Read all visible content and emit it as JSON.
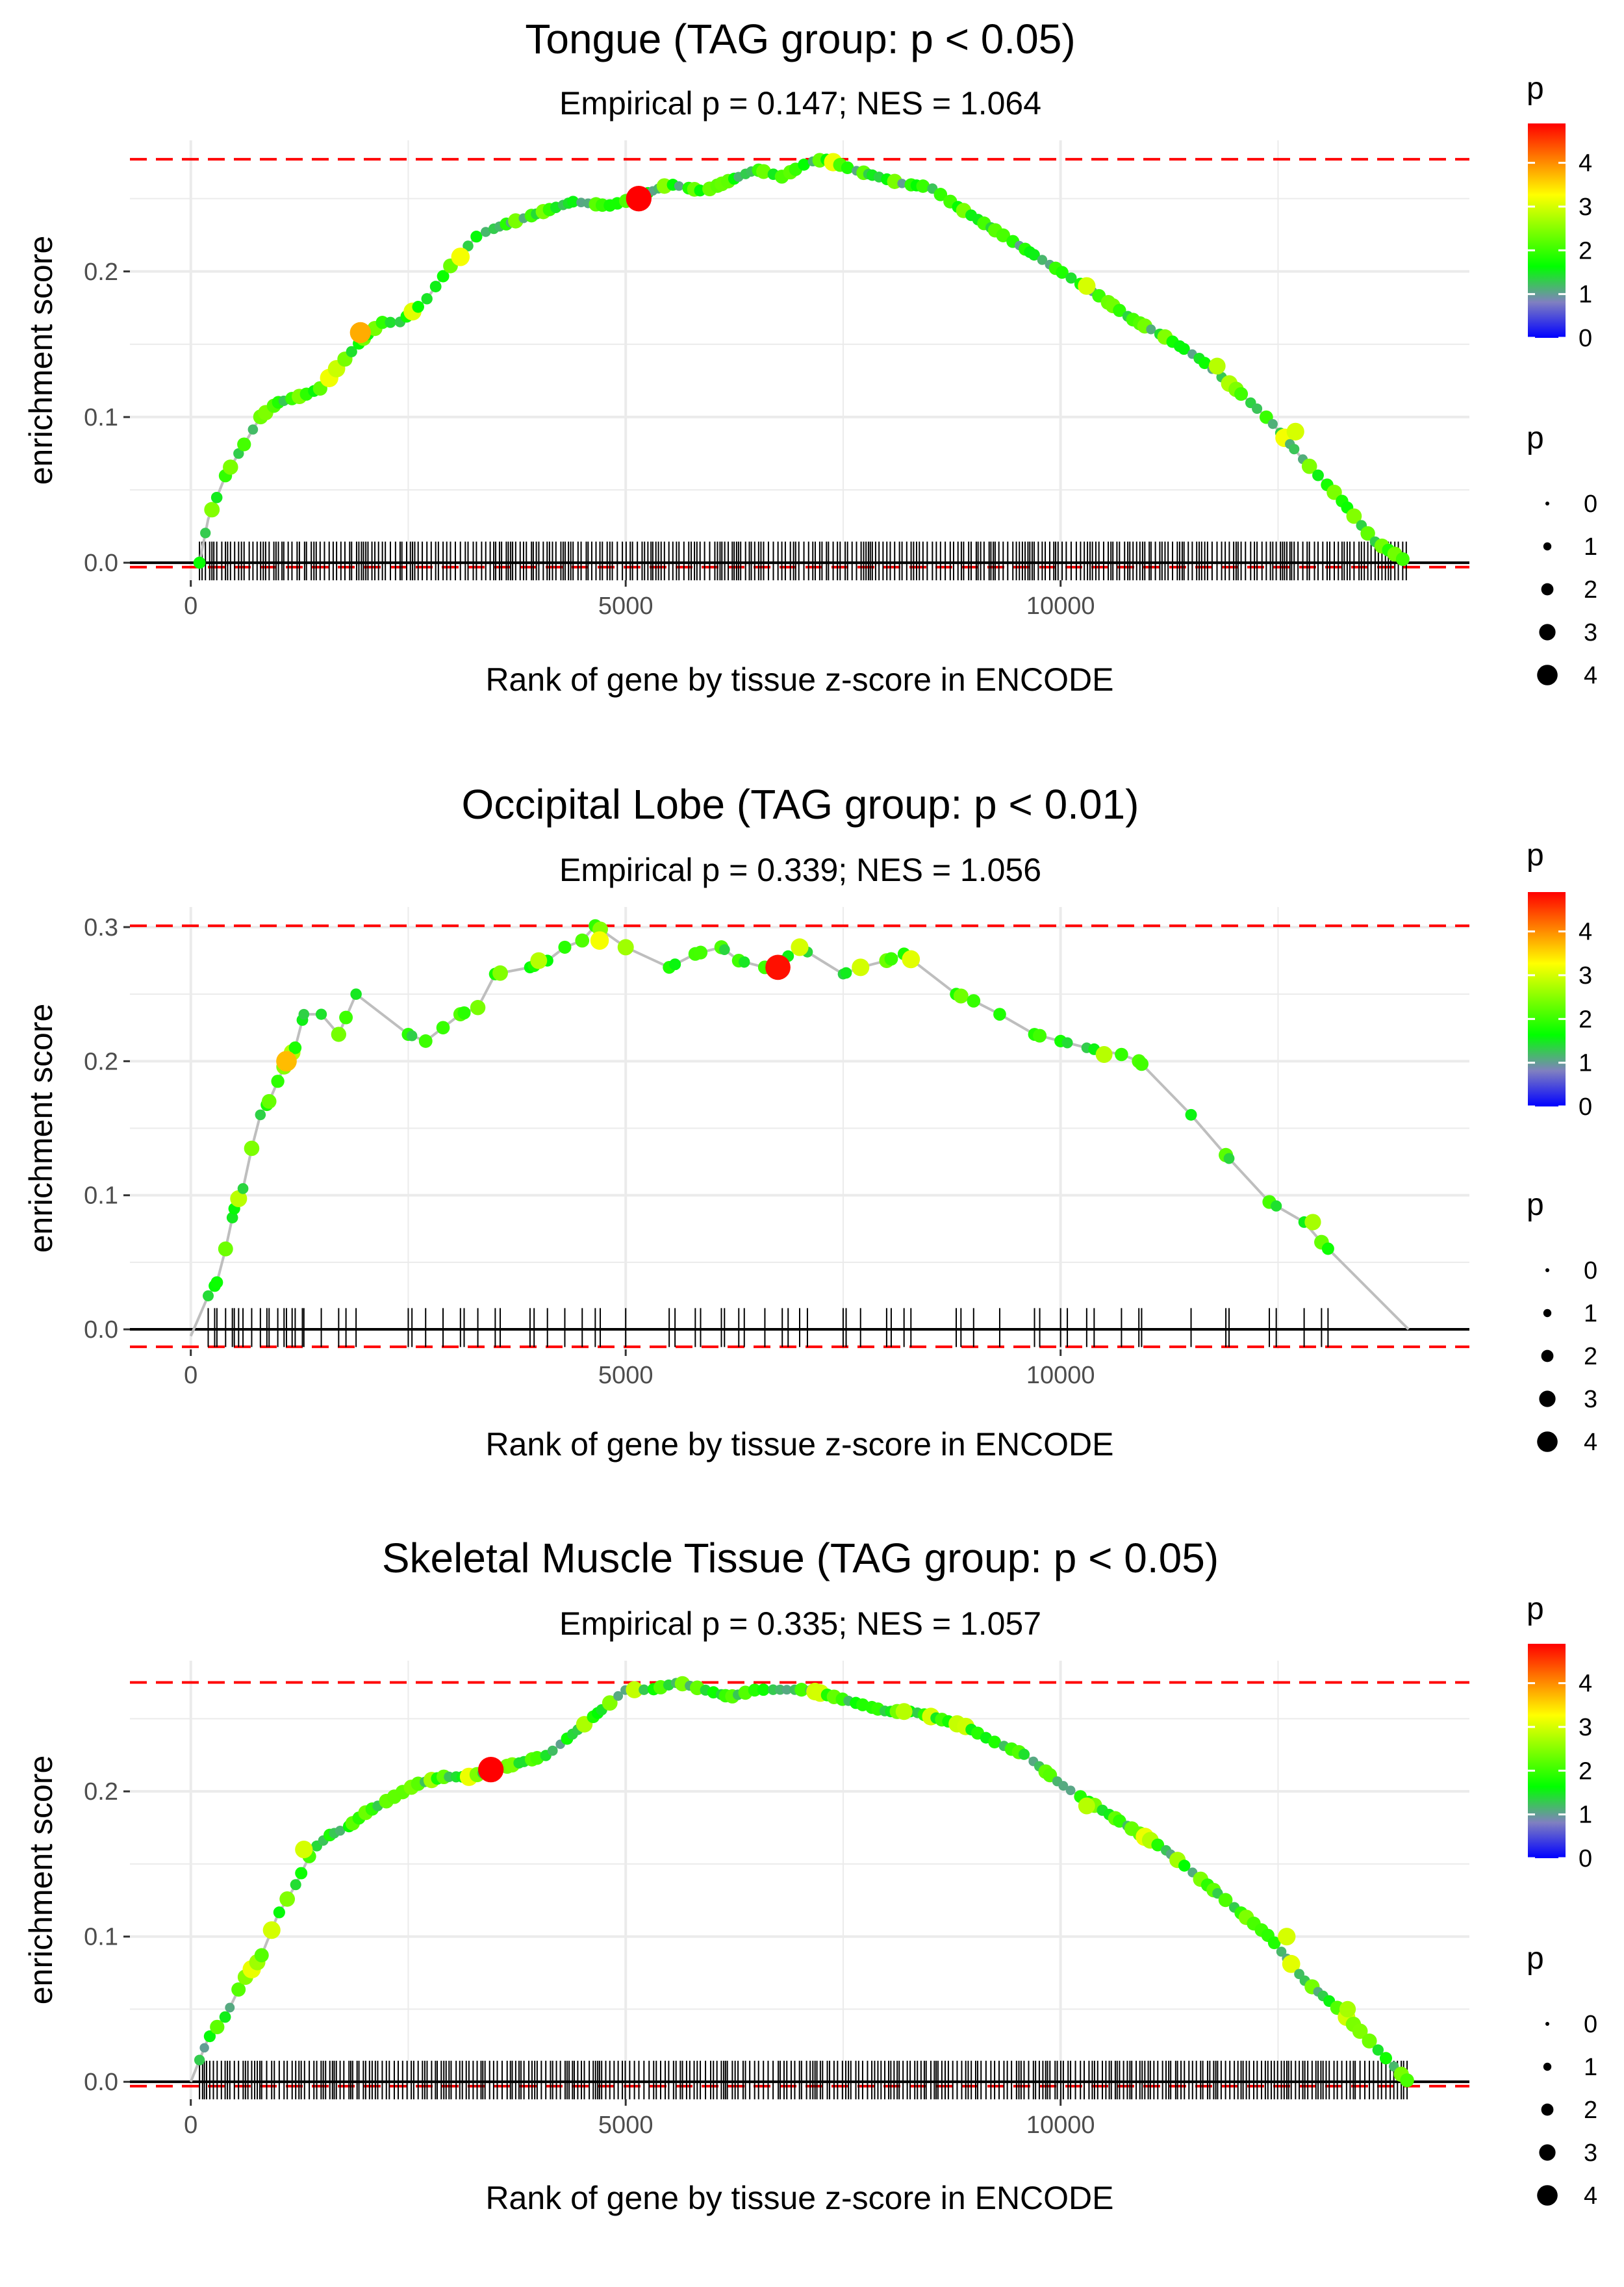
{
  "colors": {
    "gradient": [
      "#0000ff",
      "#8080c0",
      "#00ff00",
      "#7fff00",
      "#ffff00",
      "#ff8000",
      "#ff0000"
    ],
    "threshold_line": "#ff0000",
    "es_line": "#bebebe",
    "grid": "#ebebeb"
  },
  "chart_data": [
    {
      "type": "line",
      "title": "Tongue (TAG group: p < 0.05)",
      "subtitle": "Empirical p = 0.147; NES = 1.064",
      "xlabel": "Rank of gene by tissue z-score in ENCODE",
      "ylabel": "enrichment score",
      "xlim": [
        -700,
        14700
      ],
      "ylim": [
        -0.012,
        0.29
      ],
      "x_ticks": [
        0,
        5000,
        10000
      ],
      "x_tick_labels": [
        "0",
        "5000",
        "10000"
      ],
      "y_ticks": [
        0.0,
        0.1,
        0.2
      ],
      "y_tick_labels": [
        "0.0",
        "0.1",
        "0.2"
      ],
      "grid": true,
      "max_es": 0.277,
      "min_es": -0.003,
      "n_genes": 14000,
      "hit_density": "dense",
      "es_curve": {
        "x": [
          100,
          200,
          400,
          600,
          800,
          1000,
          1300,
          1500,
          1700,
          2000,
          2200,
          2400,
          2700,
          3000,
          3300,
          3600,
          4000,
          4400,
          4800,
          5100,
          5500,
          5900,
          6300,
          6500,
          6800,
          7100,
          7300,
          7600,
          7900,
          8200,
          8500,
          8800,
          9200,
          9600,
          10000,
          10400,
          10800,
          11200,
          11600,
          12000,
          12400,
          12800,
          13200,
          13600,
          14000
        ],
        "y": [
          0.0,
          0.03,
          0.06,
          0.08,
          0.1,
          0.11,
          0.115,
          0.12,
          0.135,
          0.155,
          0.165,
          0.165,
          0.18,
          0.205,
          0.225,
          0.232,
          0.24,
          0.248,
          0.245,
          0.25,
          0.26,
          0.255,
          0.265,
          0.27,
          0.265,
          0.275,
          0.277,
          0.27,
          0.265,
          0.26,
          0.258,
          0.245,
          0.23,
          0.215,
          0.2,
          0.185,
          0.168,
          0.155,
          0.14,
          0.12,
          0.098,
          0.07,
          0.045,
          0.015,
          0.0
        ]
      },
      "highlights": [
        {
          "x": 5150,
          "y": 0.25,
          "p": 4.9
        },
        {
          "x": 1950,
          "y": 0.158,
          "p": 3.8
        },
        {
          "x": 3100,
          "y": 0.21,
          "p": 3.2
        },
        {
          "x": 10300,
          "y": 0.19,
          "p": 3.0
        },
        {
          "x": 12700,
          "y": 0.09,
          "p": 3.0
        },
        {
          "x": 11800,
          "y": 0.135,
          "p": 2.8
        }
      ],
      "colorbar": {
        "title": "p",
        "ticks": [
          0,
          1,
          2,
          3,
          4
        ],
        "labels": [
          "0",
          "1",
          "2",
          "3",
          "4"
        ],
        "max": 4.9
      },
      "size_legend": {
        "title": "p",
        "labels": [
          "0",
          "1",
          "2",
          "3",
          "4"
        ]
      }
    },
    {
      "type": "line",
      "title": "Occipital Lobe (TAG group: p < 0.01)",
      "subtitle": "Empirical p = 0.339; NES = 1.056",
      "xlabel": "Rank of gene by tissue z-score in ENCODE",
      "ylabel": "enrichment score",
      "xlim": [
        -700,
        14700
      ],
      "ylim": [
        -0.015,
        0.315
      ],
      "x_ticks": [
        0,
        5000,
        10000
      ],
      "x_tick_labels": [
        "0",
        "5000",
        "10000"
      ],
      "y_ticks": [
        0.0,
        0.1,
        0.2,
        0.3
      ],
      "y_tick_labels": [
        "0.0",
        "0.1",
        "0.2",
        "0.3"
      ],
      "grid": true,
      "max_es": 0.301,
      "min_es": -0.013,
      "n_genes": 14000,
      "hit_density": "sparse",
      "es_curve": {
        "x": [
          0,
          200,
          300,
          400,
          500,
          600,
          700,
          800,
          900,
          1000,
          1100,
          1200,
          1300,
          1500,
          1700,
          1900,
          2500,
          2700,
          2900,
          3100,
          3300,
          3500,
          3900,
          4100,
          4300,
          4500,
          4650,
          5000,
          5500,
          5800,
          6100,
          6300,
          6600,
          6800,
          7000,
          7500,
          7700,
          8000,
          8200,
          8800,
          9000,
          9300,
          9700,
          10000,
          10300,
          10700,
          10900,
          11500,
          11900,
          12400,
          12800,
          13000,
          14000
        ],
        "y": [
          -0.005,
          0.025,
          0.035,
          0.06,
          0.09,
          0.105,
          0.135,
          0.16,
          0.17,
          0.185,
          0.2,
          0.21,
          0.235,
          0.235,
          0.22,
          0.25,
          0.22,
          0.215,
          0.225,
          0.235,
          0.24,
          0.265,
          0.27,
          0.275,
          0.285,
          0.29,
          0.301,
          0.285,
          0.27,
          0.28,
          0.285,
          0.275,
          0.27,
          0.275,
          0.285,
          0.265,
          0.27,
          0.275,
          0.28,
          0.25,
          0.245,
          0.235,
          0.22,
          0.215,
          0.21,
          0.205,
          0.2,
          0.16,
          0.13,
          0.095,
          0.08,
          0.065,
          0.0
        ]
      },
      "highlights": [
        {
          "x": 6750,
          "y": 0.27,
          "p": 4.8
        },
        {
          "x": 1100,
          "y": 0.2,
          "p": 3.7
        },
        {
          "x": 4700,
          "y": 0.29,
          "p": 3.2
        },
        {
          "x": 7000,
          "y": 0.285,
          "p": 3.0
        },
        {
          "x": 4000,
          "y": 0.275,
          "p": 2.8
        },
        {
          "x": 10500,
          "y": 0.205,
          "p": 2.8
        },
        {
          "x": 12900,
          "y": 0.08,
          "p": 2.7
        }
      ],
      "colorbar": {
        "title": "p",
        "ticks": [
          0,
          1,
          2,
          3,
          4
        ],
        "labels": [
          "0",
          "1",
          "2",
          "3",
          "4"
        ],
        "max": 4.9
      },
      "size_legend": {
        "title": "p",
        "labels": [
          "0",
          "1",
          "2",
          "3",
          "4"
        ]
      }
    },
    {
      "type": "line",
      "title": "Skeletal Muscle Tissue (TAG group: p < 0.05)",
      "subtitle": "Empirical p = 0.335; NES = 1.057",
      "xlabel": "Rank of gene by tissue z-score in ENCODE",
      "ylabel": "enrichment score",
      "xlim": [
        -700,
        14700
      ],
      "ylim": [
        -0.012,
        0.29
      ],
      "x_ticks": [
        0,
        5000,
        10000
      ],
      "x_tick_labels": [
        "0",
        "5000",
        "10000"
      ],
      "y_ticks": [
        0.0,
        0.1,
        0.2
      ],
      "y_tick_labels": [
        "0.0",
        "0.1",
        "0.2"
      ],
      "grid": true,
      "max_es": 0.275,
      "min_es": -0.003,
      "n_genes": 14000,
      "hit_density": "dense",
      "es_curve": {
        "x": [
          0,
          200,
          400,
          600,
          800,
          1000,
          1200,
          1400,
          1600,
          1800,
          2000,
          2300,
          2600,
          2900,
          3200,
          3500,
          3800,
          4100,
          4400,
          4700,
          5000,
          5300,
          5600,
          5900,
          6200,
          6500,
          6800,
          7100,
          7400,
          7700,
          8000,
          8300,
          8600,
          8900,
          9200,
          9600,
          10000,
          10400,
          10800,
          11200,
          11600,
          12000,
          12400,
          12800,
          13200,
          13600,
          14000
        ],
        "y": [
          0.0,
          0.03,
          0.045,
          0.07,
          0.085,
          0.115,
          0.135,
          0.16,
          0.17,
          0.175,
          0.185,
          0.195,
          0.205,
          0.21,
          0.21,
          0.215,
          0.22,
          0.225,
          0.24,
          0.255,
          0.27,
          0.27,
          0.275,
          0.27,
          0.265,
          0.27,
          0.27,
          0.27,
          0.265,
          0.26,
          0.255,
          0.255,
          0.25,
          0.245,
          0.235,
          0.225,
          0.205,
          0.19,
          0.175,
          0.16,
          0.14,
          0.12,
          0.1,
          0.07,
          0.05,
          0.025,
          0.0
        ]
      },
      "highlights": [
        {
          "x": 3450,
          "y": 0.215,
          "p": 4.9
        },
        {
          "x": 1300,
          "y": 0.16,
          "p": 3.0
        },
        {
          "x": 12600,
          "y": 0.1,
          "p": 3.0
        },
        {
          "x": 10300,
          "y": 0.19,
          "p": 2.8
        },
        {
          "x": 8200,
          "y": 0.255,
          "p": 2.8
        },
        {
          "x": 13300,
          "y": 0.05,
          "p": 2.7
        }
      ],
      "colorbar": {
        "title": "p",
        "ticks": [
          0,
          1,
          2,
          3,
          4
        ],
        "labels": [
          "0",
          "1",
          "2",
          "3",
          "4"
        ],
        "max": 4.9
      },
      "size_legend": {
        "title": "p",
        "labels": [
          "0",
          "1",
          "2",
          "3",
          "4"
        ]
      }
    }
  ]
}
